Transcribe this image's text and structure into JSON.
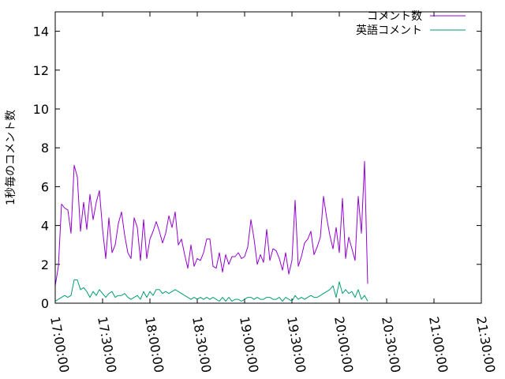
{
  "chart_data": {
    "type": "line",
    "title": "",
    "xlabel": "",
    "ylabel": "1秒毎のコメント数",
    "xlim": [
      "17:00:00",
      "21:30:00"
    ],
    "ylim": [
      0,
      15
    ],
    "x_ticks": [
      "17:00:00",
      "17:30:00",
      "18:00:00",
      "18:30:00",
      "19:00:00",
      "19:30:00",
      "20:00:00",
      "20:30:00",
      "21:00:00",
      "21:30:00"
    ],
    "y_ticks": [
      "0",
      "2",
      "4",
      "6",
      "8",
      "10",
      "12",
      "14"
    ],
    "grid": false,
    "legend_position": "top-right",
    "x_step_seconds": 120,
    "x_start": "17:00:00",
    "series": [
      {
        "name": "コメント数",
        "color": "#9400d3",
        "values": [
          0.9,
          1.9,
          5.1,
          4.9,
          4.8,
          3.6,
          7.1,
          6.5,
          3.7,
          5.2,
          3.8,
          5.6,
          4.3,
          5.2,
          5.8,
          3.8,
          2.3,
          4.4,
          2.6,
          3.0,
          4.1,
          4.7,
          3.5,
          2.6,
          2.3,
          4.4,
          3.9,
          2.2,
          4.3,
          2.3,
          3.3,
          3.7,
          4.2,
          3.7,
          3.1,
          3.6,
          4.5,
          3.9,
          4.7,
          3.0,
          3.3,
          2.5,
          1.8,
          3.0,
          1.9,
          2.3,
          2.2,
          2.6,
          3.3,
          3.3,
          1.9,
          1.8,
          2.6,
          1.6,
          2.5,
          2.0,
          2.4,
          2.4,
          2.6,
          2.3,
          2.4,
          2.9,
          4.3,
          3.3,
          2.0,
          2.5,
          2.1,
          3.8,
          2.2,
          2.8,
          2.7,
          2.3,
          1.7,
          2.6,
          1.5,
          2.2,
          5.3,
          1.9,
          2.4,
          3.1,
          3.3,
          3.7,
          2.5,
          2.9,
          3.4,
          5.5,
          4.4,
          3.5,
          2.8,
          3.9,
          2.6,
          5.4,
          2.3,
          3.4,
          2.8,
          2.2,
          5.5,
          3.6,
          7.3,
          1.0
        ]
      },
      {
        "name": "英語コメント",
        "color": "#009e73",
        "values": [
          0.1,
          0.2,
          0.3,
          0.4,
          0.3,
          0.4,
          1.2,
          1.2,
          0.7,
          0.8,
          0.6,
          0.3,
          0.6,
          0.4,
          0.7,
          0.5,
          0.3,
          0.5,
          0.6,
          0.3,
          0.4,
          0.4,
          0.5,
          0.3,
          0.2,
          0.3,
          0.4,
          0.2,
          0.6,
          0.3,
          0.6,
          0.4,
          0.7,
          0.7,
          0.5,
          0.6,
          0.5,
          0.6,
          0.7,
          0.6,
          0.5,
          0.4,
          0.3,
          0.2,
          0.3,
          0.2,
          0.3,
          0.2,
          0.3,
          0.2,
          0.3,
          0.2,
          0.1,
          0.3,
          0.1,
          0.3,
          0.1,
          0.2,
          0.2,
          0.1,
          0.2,
          0.3,
          0.3,
          0.2,
          0.3,
          0.2,
          0.2,
          0.3,
          0.3,
          0.2,
          0.2,
          0.3,
          0.1,
          0.3,
          0.2,
          0.1,
          0.4,
          0.2,
          0.3,
          0.2,
          0.3,
          0.4,
          0.3,
          0.3,
          0.4,
          0.5,
          0.6,
          0.7,
          0.9,
          0.3,
          1.1,
          0.5,
          0.7,
          0.5,
          0.6,
          0.3,
          0.7,
          0.2,
          0.4,
          0.1
        ]
      }
    ]
  }
}
